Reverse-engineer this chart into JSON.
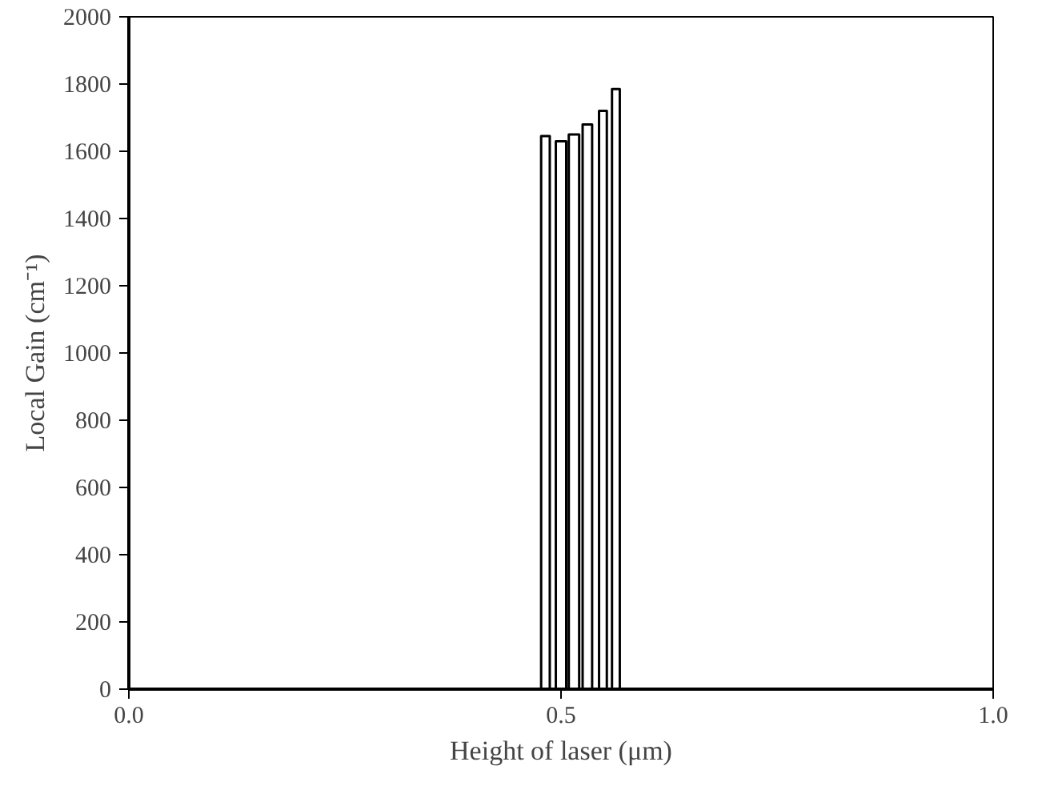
{
  "chart_data": {
    "type": "line",
    "xlabel": "Height of laser (μm)",
    "ylabel": "Local Gain (cm⁻¹)",
    "xlim": [
      0,
      1
    ],
    "xticks": [
      {
        "value": 0,
        "label": "0.0"
      },
      {
        "value": 0.5,
        "label": "0.5"
      },
      {
        "value": 1,
        "label": "1.0"
      }
    ],
    "ylim": [
      0,
      2000
    ],
    "yticks": [
      0,
      200,
      400,
      600,
      800,
      1000,
      1200,
      1400,
      1600,
      1800,
      2000
    ],
    "grid": false,
    "marker": "none",
    "line_style": "solid",
    "series": [
      {
        "color": "#000000",
        "x": [
          0.46,
          0.477,
          0.477,
          0.487,
          0.487,
          0.494,
          0.494,
          0.506,
          0.506,
          0.509,
          0.509,
          0.521,
          0.521,
          0.525,
          0.525,
          0.536,
          0.536,
          0.544,
          0.544,
          0.553,
          0.553,
          0.559,
          0.559,
          0.568,
          0.568,
          0.59
        ],
        "values": [
          0,
          0,
          1645,
          1645,
          0,
          0,
          1630,
          1630,
          0,
          0,
          1650,
          1650,
          0,
          0,
          1680,
          1680,
          0,
          0,
          1720,
          1720,
          0,
          0,
          1785,
          1785,
          0,
          0
        ]
      }
    ]
  }
}
